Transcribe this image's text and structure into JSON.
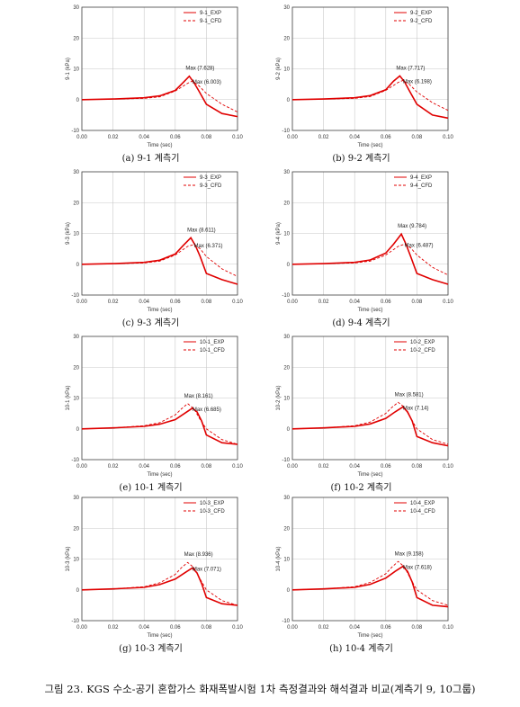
{
  "figure_caption": "그림 23. KGS 수소-공기 혼합가스 화재폭발시험 1차 측정결과와 해석결과 비교(계측기 9, 10그룹)",
  "styles": {
    "exp_color": "#e00000",
    "cfd_color": "#e00000",
    "grid_color": "#c8c8c8"
  },
  "chart_data": [
    {
      "type": "line",
      "caption": "(a) 9-1 계측기",
      "ylabel": "9-1 (kPa)",
      "xlabel": "Time (sec)",
      "xlim": [
        0,
        0.1
      ],
      "ylim": [
        -10,
        30
      ],
      "xticks": [
        "0.00",
        "0.02",
        "0.04",
        "0.06",
        "0.08",
        "0.10"
      ],
      "yticks": [
        "-10",
        "0",
        "10",
        "20",
        "30"
      ],
      "legend_position": "top-right",
      "series": [
        {
          "name": "9-1_EXP",
          "style": "solid",
          "x": [
            0,
            0.02,
            0.04,
            0.05,
            0.06,
            0.065,
            0.069,
            0.072,
            0.075,
            0.08,
            0.09,
            0.1
          ],
          "y": [
            0,
            0.2,
            0.6,
            1.2,
            3,
            5.5,
            7.6,
            5.5,
            3,
            -1.5,
            -4.5,
            -5.5
          ]
        },
        {
          "name": "9-1_CFD",
          "style": "dashed",
          "x": [
            0,
            0.02,
            0.04,
            0.05,
            0.06,
            0.068,
            0.071,
            0.075,
            0.08,
            0.09,
            0.1
          ],
          "y": [
            0,
            0.2,
            0.4,
            0.9,
            2.8,
            5.3,
            6.0,
            4.6,
            2,
            -1.5,
            -4
          ]
        }
      ],
      "annotations": [
        {
          "text": "Max (7.628)",
          "x": 0.069,
          "y": 7.628
        },
        {
          "text": "Max (6.003)",
          "x": 0.071,
          "y": 6.003
        }
      ]
    },
    {
      "type": "line",
      "caption": "(b) 9-2 계측기",
      "ylabel": "9-2 (kPa)",
      "xlabel": "Time (sec)",
      "xlim": [
        0,
        0.1
      ],
      "ylim": [
        -10,
        30
      ],
      "xticks": [
        "0.00",
        "0.02",
        "0.04",
        "0.06",
        "0.08",
        "0.10"
      ],
      "yticks": [
        "-10",
        "0",
        "10",
        "20",
        "30"
      ],
      "legend_position": "top-right",
      "series": [
        {
          "name": "9-2_EXP",
          "style": "solid",
          "x": [
            0,
            0.02,
            0.04,
            0.05,
            0.06,
            0.065,
            0.069,
            0.072,
            0.075,
            0.08,
            0.09,
            0.1
          ],
          "y": [
            0,
            0.2,
            0.6,
            1.3,
            3.2,
            6,
            7.7,
            5.8,
            3,
            -1.5,
            -5,
            -6
          ]
        },
        {
          "name": "9-2_CFD",
          "style": "dashed",
          "x": [
            0,
            0.02,
            0.04,
            0.05,
            0.06,
            0.068,
            0.071,
            0.075,
            0.08,
            0.09,
            0.1
          ],
          "y": [
            0,
            0.2,
            0.4,
            1,
            3,
            5.6,
            6.2,
            5,
            2.5,
            -1,
            -3.5
          ]
        }
      ],
      "annotations": [
        {
          "text": "Max (7.717)",
          "x": 0.069,
          "y": 7.717
        },
        {
          "text": "Max (6.198)",
          "x": 0.071,
          "y": 6.198
        }
      ]
    },
    {
      "type": "line",
      "caption": "(c) 9-3 계측기",
      "ylabel": "9-3 (kPa)",
      "xlabel": "Time (sec)",
      "xlim": [
        0,
        0.1
      ],
      "ylim": [
        -10,
        30
      ],
      "xticks": [
        "0.00",
        "0.02",
        "0.04",
        "0.06",
        "0.08",
        "0.10"
      ],
      "yticks": [
        "-10",
        "0",
        "10",
        "20",
        "30"
      ],
      "legend_position": "top-right",
      "series": [
        {
          "name": "9-3_EXP",
          "style": "solid",
          "x": [
            0,
            0.02,
            0.04,
            0.05,
            0.06,
            0.065,
            0.07,
            0.073,
            0.076,
            0.08,
            0.09,
            0.1
          ],
          "y": [
            0,
            0.2,
            0.6,
            1.3,
            3.3,
            6,
            8.6,
            6,
            2.5,
            -3,
            -5,
            -6.5
          ]
        },
        {
          "name": "9-3_CFD",
          "style": "dashed",
          "x": [
            0,
            0.02,
            0.04,
            0.05,
            0.06,
            0.068,
            0.072,
            0.076,
            0.08,
            0.09,
            0.1
          ],
          "y": [
            0,
            0.2,
            0.4,
            1,
            3,
            5.8,
            6.4,
            5,
            2.5,
            -1.5,
            -4
          ]
        }
      ],
      "annotations": [
        {
          "text": "Max (8.611)",
          "x": 0.07,
          "y": 8.611
        },
        {
          "text": "Max (6.371)",
          "x": 0.072,
          "y": 6.371
        }
      ]
    },
    {
      "type": "line",
      "caption": "(d) 9-4 계측기",
      "ylabel": "9-4 (kPa)",
      "xlabel": "Time (sec)",
      "xlim": [
        0,
        0.1
      ],
      "ylim": [
        -10,
        30
      ],
      "xticks": [
        "0.00",
        "0.02",
        "0.04",
        "0.06",
        "0.08",
        "0.10"
      ],
      "yticks": [
        "-10",
        "0",
        "10",
        "20",
        "30"
      ],
      "legend_position": "top-right",
      "series": [
        {
          "name": "9-4_EXP",
          "style": "solid",
          "x": [
            0,
            0.02,
            0.04,
            0.05,
            0.06,
            0.065,
            0.07,
            0.073,
            0.076,
            0.08,
            0.09,
            0.1
          ],
          "y": [
            0,
            0.2,
            0.6,
            1.4,
            3.6,
            6.5,
            9.8,
            6.5,
            2.5,
            -3,
            -5,
            -6.5
          ]
        },
        {
          "name": "9-4_CFD",
          "style": "dashed",
          "x": [
            0,
            0.02,
            0.04,
            0.05,
            0.06,
            0.068,
            0.072,
            0.076,
            0.08,
            0.09,
            0.1
          ],
          "y": [
            0,
            0.2,
            0.4,
            1,
            3,
            5.8,
            6.5,
            5.3,
            3,
            -1,
            -3.5
          ]
        }
      ],
      "annotations": [
        {
          "text": "Max (9.784)",
          "x": 0.07,
          "y": 9.784
        },
        {
          "text": "Max (6.487)",
          "x": 0.072,
          "y": 6.487
        }
      ]
    },
    {
      "type": "line",
      "caption": "(e) 10-1 계측기",
      "ylabel": "10-1 (kPa)",
      "xlabel": "Time (sec)",
      "xlim": [
        0,
        0.1
      ],
      "ylim": [
        -10,
        30
      ],
      "xticks": [
        "0.00",
        "0.02",
        "0.04",
        "0.06",
        "0.08",
        "0.10"
      ],
      "yticks": [
        "-10",
        "0",
        "10",
        "20",
        "30"
      ],
      "legend_position": "top-right",
      "series": [
        {
          "name": "10-1_EXP",
          "style": "solid",
          "x": [
            0,
            0.02,
            0.04,
            0.05,
            0.06,
            0.066,
            0.071,
            0.074,
            0.077,
            0.08,
            0.09,
            0.1
          ],
          "y": [
            0,
            0.3,
            0.8,
            1.5,
            3,
            5,
            6.7,
            5.5,
            2.5,
            -2,
            -4.5,
            -5
          ]
        },
        {
          "name": "10-1_CFD",
          "style": "dashed",
          "x": [
            0,
            0.02,
            0.04,
            0.05,
            0.06,
            0.064,
            0.068,
            0.072,
            0.076,
            0.08,
            0.09,
            0.1
          ],
          "y": [
            0,
            0.3,
            1,
            2,
            4.5,
            6.5,
            8.2,
            6.5,
            3,
            0,
            -3.5,
            -5
          ]
        }
      ],
      "annotations": [
        {
          "text": "Max (8.161)",
          "x": 0.068,
          "y": 8.161
        },
        {
          "text": "Max (6.685)",
          "x": 0.071,
          "y": 6.685
        }
      ]
    },
    {
      "type": "line",
      "caption": "(f) 10-2 계측기",
      "ylabel": "10-2 (kPa)",
      "xlabel": "Time (sec)",
      "xlim": [
        0,
        0.1
      ],
      "ylim": [
        -10,
        30
      ],
      "xticks": [
        "0.00",
        "0.02",
        "0.04",
        "0.06",
        "0.08",
        "0.10"
      ],
      "yticks": [
        "-10",
        "0",
        "10",
        "20",
        "30"
      ],
      "legend_position": "top-right",
      "series": [
        {
          "name": "10-2_EXP",
          "style": "solid",
          "x": [
            0,
            0.02,
            0.04,
            0.05,
            0.06,
            0.066,
            0.071,
            0.074,
            0.077,
            0.08,
            0.09,
            0.1
          ],
          "y": [
            0,
            0.3,
            0.8,
            1.6,
            3.4,
            5.5,
            7.1,
            5.5,
            2.5,
            -2.5,
            -4.5,
            -5.5
          ]
        },
        {
          "name": "10-2_CFD",
          "style": "dashed",
          "x": [
            0,
            0.02,
            0.04,
            0.05,
            0.06,
            0.064,
            0.068,
            0.072,
            0.076,
            0.08,
            0.09,
            0.1
          ],
          "y": [
            0,
            0.3,
            1,
            2.2,
            5,
            7,
            8.6,
            7,
            3.5,
            0,
            -3.5,
            -5
          ]
        }
      ],
      "annotations": [
        {
          "text": "Max (8.581)",
          "x": 0.068,
          "y": 8.581
        },
        {
          "text": "Max (7.14)",
          "x": 0.071,
          "y": 7.14
        }
      ]
    },
    {
      "type": "line",
      "caption": "(g) 10-3 계측기",
      "ylabel": "10-3 (kPa)",
      "xlabel": "Time (sec)",
      "xlim": [
        0,
        0.1
      ],
      "ylim": [
        -10,
        30
      ],
      "xticks": [
        "0.00",
        "0.02",
        "0.04",
        "0.06",
        "0.08",
        "0.10"
      ],
      "yticks": [
        "-10",
        "0",
        "10",
        "20",
        "30"
      ],
      "legend_position": "top-right",
      "series": [
        {
          "name": "10-3_EXP",
          "style": "solid",
          "x": [
            0,
            0.02,
            0.04,
            0.05,
            0.06,
            0.066,
            0.071,
            0.074,
            0.077,
            0.08,
            0.09,
            0.1
          ],
          "y": [
            0,
            0.3,
            0.8,
            1.7,
            3.5,
            5.5,
            7.1,
            5.5,
            2,
            -2.5,
            -4.5,
            -5
          ]
        },
        {
          "name": "10-3_CFD",
          "style": "dashed",
          "x": [
            0,
            0.02,
            0.04,
            0.05,
            0.06,
            0.064,
            0.068,
            0.072,
            0.076,
            0.08,
            0.09,
            0.1
          ],
          "y": [
            0,
            0.3,
            1,
            2.3,
            5,
            7.2,
            8.9,
            7.2,
            3.5,
            0,
            -3.5,
            -5
          ]
        }
      ],
      "annotations": [
        {
          "text": "Max (8.936)",
          "x": 0.068,
          "y": 8.936
        },
        {
          "text": "Max (7.071)",
          "x": 0.071,
          "y": 7.071
        }
      ]
    },
    {
      "type": "line",
      "caption": "(h) 10-4 계측기",
      "ylabel": "10-4 (kPa)",
      "xlabel": "Time (sec)",
      "xlim": [
        0,
        0.1
      ],
      "ylim": [
        -10,
        30
      ],
      "xticks": [
        "0.00",
        "0.02",
        "0.04",
        "0.06",
        "0.08",
        "0.10"
      ],
      "yticks": [
        "-10",
        "0",
        "10",
        "20",
        "30"
      ],
      "legend_position": "top-right",
      "series": [
        {
          "name": "10-4_EXP",
          "style": "solid",
          "x": [
            0,
            0.02,
            0.04,
            0.05,
            0.06,
            0.066,
            0.071,
            0.074,
            0.077,
            0.08,
            0.09,
            0.1
          ],
          "y": [
            0,
            0.3,
            0.8,
            1.8,
            3.8,
            6,
            7.6,
            6,
            2.5,
            -2.5,
            -5,
            -5.5
          ]
        },
        {
          "name": "10-4_CFD",
          "style": "dashed",
          "x": [
            0,
            0.02,
            0.04,
            0.05,
            0.06,
            0.064,
            0.068,
            0.072,
            0.076,
            0.08,
            0.09,
            0.1
          ],
          "y": [
            0,
            0.3,
            1,
            2.4,
            5.2,
            7.4,
            9.2,
            7.4,
            3.5,
            0,
            -3.5,
            -5
          ]
        }
      ],
      "annotations": [
        {
          "text": "Max (9.158)",
          "x": 0.068,
          "y": 9.158
        },
        {
          "text": "Max (7.618)",
          "x": 0.071,
          "y": 7.618
        }
      ]
    }
  ]
}
